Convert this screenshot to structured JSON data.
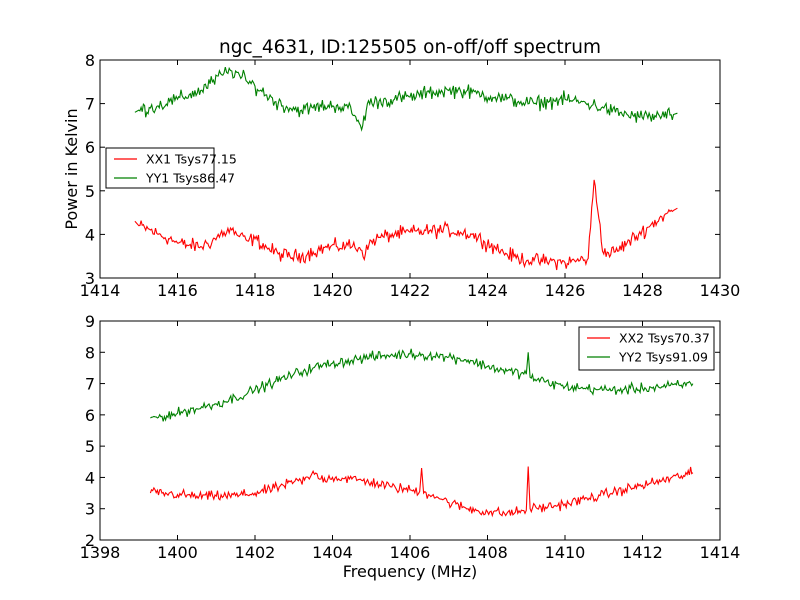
{
  "figure": {
    "title": "ngc_4631, ID:125505 on-off/off spectrum",
    "ylabel": "Power in Kelvin",
    "xlabel": "Frequency (MHz)"
  },
  "chart_data": [
    {
      "type": "line",
      "title": "ngc_4631, ID:125505 on-off/off spectrum",
      "ylabel": "Power in Kelvin",
      "xlabel": "",
      "xlim": [
        1414,
        1430
      ],
      "ylim": [
        3,
        8
      ],
      "xticks": [
        "1414",
        "1416",
        "1418",
        "1420",
        "1422",
        "1424",
        "1426",
        "1428",
        "1430"
      ],
      "yticks": [
        "3",
        "4",
        "5",
        "6",
        "7",
        "8"
      ],
      "grid": false,
      "legend_position": "center-left",
      "series": [
        {
          "name": "XX1 Tsys77.15",
          "color": "#ff0000",
          "x": [
            1414.9,
            1415.0,
            1415.3,
            1415.5,
            1415.8,
            1416.0,
            1416.3,
            1416.6,
            1416.9,
            1417.2,
            1417.4,
            1417.6,
            1417.8,
            1418.0,
            1418.3,
            1418.6,
            1418.9,
            1419.2,
            1419.5,
            1419.8,
            1420.1,
            1420.4,
            1420.7,
            1420.85,
            1421.0,
            1421.3,
            1421.6,
            1422.0,
            1422.5,
            1423.0,
            1423.3,
            1423.6,
            1423.9,
            1424.2,
            1424.5,
            1424.8,
            1425.2,
            1425.6,
            1426.0,
            1426.3,
            1426.6,
            1426.75,
            1427.0,
            1427.3,
            1427.6,
            1427.9,
            1428.2,
            1428.5,
            1428.8,
            1428.9
          ],
          "values": [
            4.3,
            4.2,
            4.1,
            4.0,
            3.9,
            3.8,
            3.75,
            3.72,
            3.85,
            4.05,
            4.1,
            3.95,
            3.85,
            3.9,
            3.7,
            3.55,
            3.5,
            3.5,
            3.6,
            3.7,
            3.72,
            3.75,
            3.7,
            3.55,
            3.85,
            3.95,
            4.0,
            4.05,
            4.08,
            4.1,
            4.05,
            4.0,
            3.85,
            3.7,
            3.55,
            3.45,
            3.4,
            3.38,
            3.35,
            3.4,
            3.45,
            5.25,
            3.55,
            3.6,
            3.8,
            4.0,
            4.2,
            4.4,
            4.55,
            4.6
          ]
        },
        {
          "name": "YY1 Tsys86.47",
          "color": "#008000",
          "x": [
            1414.9,
            1415.0,
            1415.3,
            1415.5,
            1415.8,
            1416.0,
            1416.3,
            1416.6,
            1416.9,
            1417.2,
            1417.4,
            1417.6,
            1417.8,
            1418.0,
            1418.3,
            1418.6,
            1418.9,
            1419.2,
            1419.5,
            1419.8,
            1420.1,
            1420.4,
            1420.6,
            1420.75,
            1420.9,
            1421.2,
            1421.6,
            1422.0,
            1422.5,
            1423.0,
            1423.3,
            1423.6,
            1423.9,
            1424.2,
            1424.5,
            1424.8,
            1425.2,
            1425.6,
            1426.0,
            1426.3,
            1426.6,
            1427.0,
            1427.3,
            1427.6,
            1427.9,
            1428.2,
            1428.5,
            1428.8,
            1428.9
          ],
          "values": [
            6.8,
            6.85,
            6.9,
            6.95,
            7.05,
            7.1,
            7.2,
            7.3,
            7.5,
            7.7,
            7.75,
            7.65,
            7.5,
            7.4,
            7.2,
            7.0,
            6.9,
            6.85,
            6.9,
            6.95,
            6.95,
            6.9,
            6.7,
            6.4,
            7.0,
            7.05,
            7.1,
            7.15,
            7.25,
            7.3,
            7.3,
            7.25,
            7.2,
            7.15,
            7.1,
            7.05,
            7.0,
            7.05,
            7.1,
            7.05,
            7.0,
            6.9,
            6.8,
            6.75,
            6.7,
            6.7,
            6.72,
            6.75,
            6.78
          ]
        }
      ]
    },
    {
      "type": "line",
      "title": "",
      "xlabel": "Frequency (MHz)",
      "ylabel": "",
      "xlim": [
        1398,
        1414
      ],
      "ylim": [
        2,
        9
      ],
      "xticks": [
        "1398",
        "1400",
        "1402",
        "1404",
        "1406",
        "1408",
        "1410",
        "1412",
        "1414"
      ],
      "yticks": [
        "2",
        "3",
        "4",
        "5",
        "6",
        "7",
        "8",
        "9"
      ],
      "grid": false,
      "legend_position": "top-right",
      "series": [
        {
          "name": "XX2 Tsys70.37",
          "color": "#ff0000",
          "x": [
            1399.3,
            1399.6,
            1400.0,
            1400.5,
            1401.0,
            1401.5,
            1402.0,
            1402.5,
            1403.0,
            1403.4,
            1403.5,
            1403.7,
            1404.0,
            1404.5,
            1405.0,
            1405.5,
            1406.0,
            1406.25,
            1406.3,
            1406.35,
            1406.6,
            1407.0,
            1407.5,
            1408.0,
            1408.5,
            1409.0,
            1409.05,
            1409.1,
            1409.5,
            1410.0,
            1410.5,
            1411.0,
            1411.5,
            1412.0,
            1412.5,
            1413.0,
            1413.3
          ],
          "values": [
            3.5,
            3.5,
            3.45,
            3.4,
            3.4,
            3.42,
            3.5,
            3.65,
            3.85,
            3.95,
            4.2,
            3.95,
            4.0,
            3.95,
            3.85,
            3.7,
            3.6,
            3.55,
            4.3,
            3.5,
            3.45,
            3.2,
            3.0,
            2.9,
            2.85,
            2.95,
            4.35,
            3.0,
            3.05,
            3.15,
            3.3,
            3.45,
            3.6,
            3.75,
            3.9,
            4.05,
            4.15
          ]
        },
        {
          "name": "YY2 Tsys91.09",
          "color": "#008000",
          "x": [
            1399.3,
            1399.6,
            1400.0,
            1400.5,
            1401.0,
            1401.5,
            1402.0,
            1402.5,
            1403.0,
            1403.5,
            1404.0,
            1404.5,
            1405.0,
            1405.5,
            1406.0,
            1406.5,
            1407.0,
            1407.5,
            1408.0,
            1408.5,
            1409.0,
            1409.05,
            1409.1,
            1409.5,
            1410.0,
            1410.5,
            1411.0,
            1411.5,
            1412.0,
            1412.5,
            1413.0,
            1413.3
          ],
          "values": [
            5.9,
            5.95,
            6.05,
            6.2,
            6.35,
            6.55,
            6.8,
            7.05,
            7.3,
            7.5,
            7.65,
            7.75,
            7.85,
            7.9,
            7.95,
            7.9,
            7.85,
            7.75,
            7.55,
            7.4,
            7.3,
            8.0,
            7.2,
            7.05,
            6.9,
            6.85,
            6.8,
            6.8,
            6.85,
            6.9,
            6.95,
            7.0
          ]
        }
      ]
    }
  ]
}
